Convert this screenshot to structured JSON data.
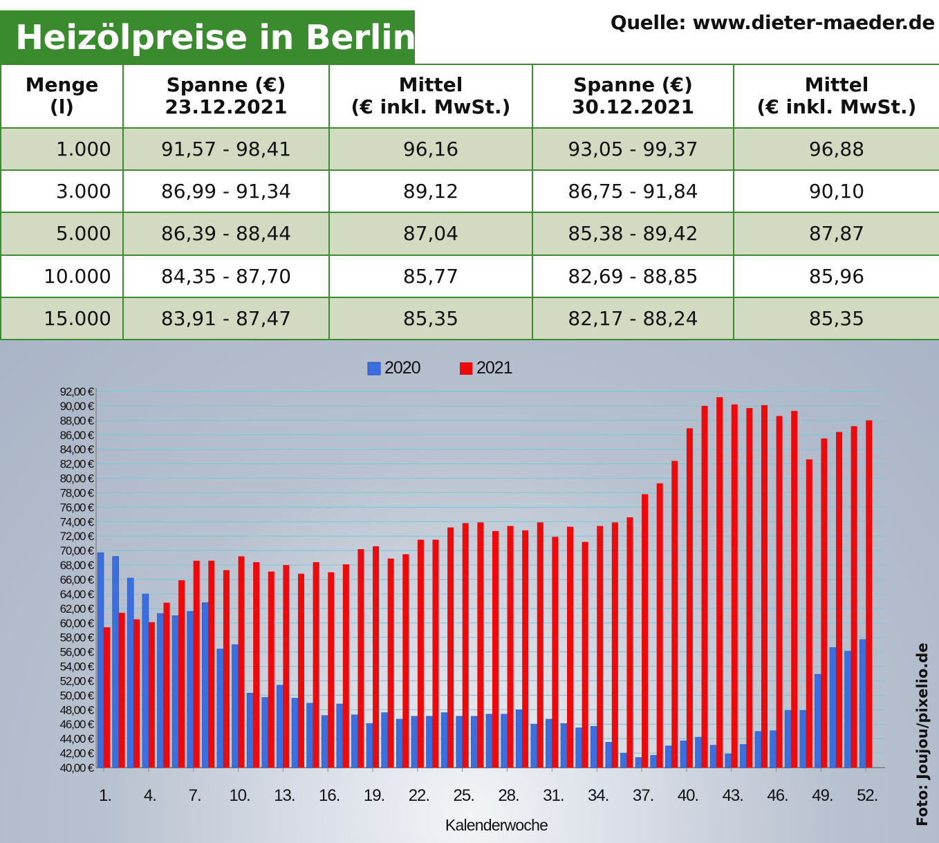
{
  "header": {
    "title": "Heizölpreise in Berlin",
    "source": "Quelle: www.dieter-maeder.de"
  },
  "table": {
    "headers": [
      {
        "line1": "Menge",
        "line2": "(l)"
      },
      {
        "line1": "Spanne (€)",
        "line2": "23.12.2021"
      },
      {
        "line1": "Mittel",
        "line2": "(€ inkl. MwSt.)"
      },
      {
        "line1": "Spanne (€)",
        "line2": "30.12.2021"
      },
      {
        "line1": "Mittel",
        "line2": "(€ inkl. MwSt.)"
      }
    ],
    "rows": [
      [
        "1.000",
        "91,57 - 98,41",
        "96,16",
        "93,05 - 99,37",
        "96,88"
      ],
      [
        "3.000",
        "86,99 - 91,34",
        "89,12",
        "86,75 - 91,84",
        "90,10"
      ],
      [
        "5.000",
        "86,39 - 88,44",
        "87,04",
        "85,38 - 89,42",
        "87,87"
      ],
      [
        "10.000",
        "84,35 - 87,70",
        "85,77",
        "82,69 - 88,85",
        "85,96"
      ],
      [
        "15.000",
        "83,91 - 87,47",
        "85,35",
        "82,17 - 88,24",
        "85,35"
      ]
    ]
  },
  "photo_credit": "Foto: Joujou/pixelio.de",
  "chart_data": {
    "type": "bar",
    "xlabel": "Kalenderwoche",
    "ylabel": "",
    "ylim": [
      40,
      92
    ],
    "y_ticks": [
      40,
      42,
      44,
      46,
      48,
      50,
      52,
      54,
      56,
      58,
      60,
      62,
      64,
      66,
      68,
      70,
      72,
      74,
      76,
      78,
      80,
      82,
      84,
      86,
      88,
      90,
      92
    ],
    "y_tick_format": "{v},00 €",
    "x_tick_labels": [
      "1.",
      "4.",
      "7.",
      "10.",
      "13.",
      "16.",
      "19.",
      "22.",
      "25.",
      "28.",
      "31.",
      "34.",
      "37.",
      "40.",
      "43.",
      "46.",
      "49.",
      "52."
    ],
    "x_tick_weeks": [
      1,
      4,
      7,
      10,
      13,
      16,
      19,
      22,
      25,
      28,
      31,
      34,
      37,
      40,
      43,
      46,
      49,
      52
    ],
    "legend_position": "top",
    "grid": true,
    "categories": [
      1,
      2,
      3,
      4,
      5,
      6,
      7,
      8,
      9,
      10,
      11,
      12,
      13,
      14,
      15,
      16,
      17,
      18,
      19,
      20,
      21,
      22,
      23,
      24,
      25,
      26,
      27,
      28,
      29,
      30,
      31,
      32,
      33,
      34,
      35,
      36,
      37,
      38,
      39,
      40,
      41,
      42,
      43,
      44,
      45,
      46,
      47,
      48,
      49,
      50,
      51,
      52
    ],
    "series": [
      {
        "name": "2020",
        "color": "#3b6fe0",
        "values": [
          69.7,
          69.2,
          66.2,
          64.0,
          61.3,
          61.0,
          61.6,
          62.8,
          56.4,
          57.0,
          50.3,
          49.7,
          51.4,
          49.6,
          48.9,
          47.2,
          48.8,
          47.3,
          46.1,
          47.6,
          46.7,
          47.1,
          47.1,
          47.6,
          47.1,
          47.1,
          47.4,
          47.4,
          48.0,
          46.0,
          46.7,
          46.1,
          45.5,
          45.7,
          43.5,
          42.0,
          41.4,
          41.7,
          43.0,
          43.7,
          44.2,
          43.1,
          41.9,
          43.2,
          45.0,
          45.1,
          47.9,
          47.9,
          52.9,
          56.6,
          56.1,
          57.7
        ]
      },
      {
        "name": "2021",
        "color": "#ee0a0a",
        "values": [
          59.4,
          61.4,
          60.5,
          60.1,
          62.8,
          65.9,
          68.6,
          68.6,
          67.3,
          69.2,
          68.4,
          67.1,
          68.0,
          66.8,
          68.4,
          67.0,
          68.1,
          70.2,
          70.6,
          68.9,
          69.5,
          71.5,
          71.5,
          73.2,
          73.8,
          73.9,
          72.7,
          73.4,
          72.8,
          73.9,
          71.9,
          73.3,
          71.2,
          73.4,
          73.9,
          74.6,
          77.8,
          79.3,
          82.4,
          86.9,
          90.0,
          91.2,
          90.2,
          89.7,
          90.1,
          88.6,
          89.3,
          82.6,
          85.5,
          86.4,
          87.2,
          88.0
        ]
      }
    ]
  }
}
